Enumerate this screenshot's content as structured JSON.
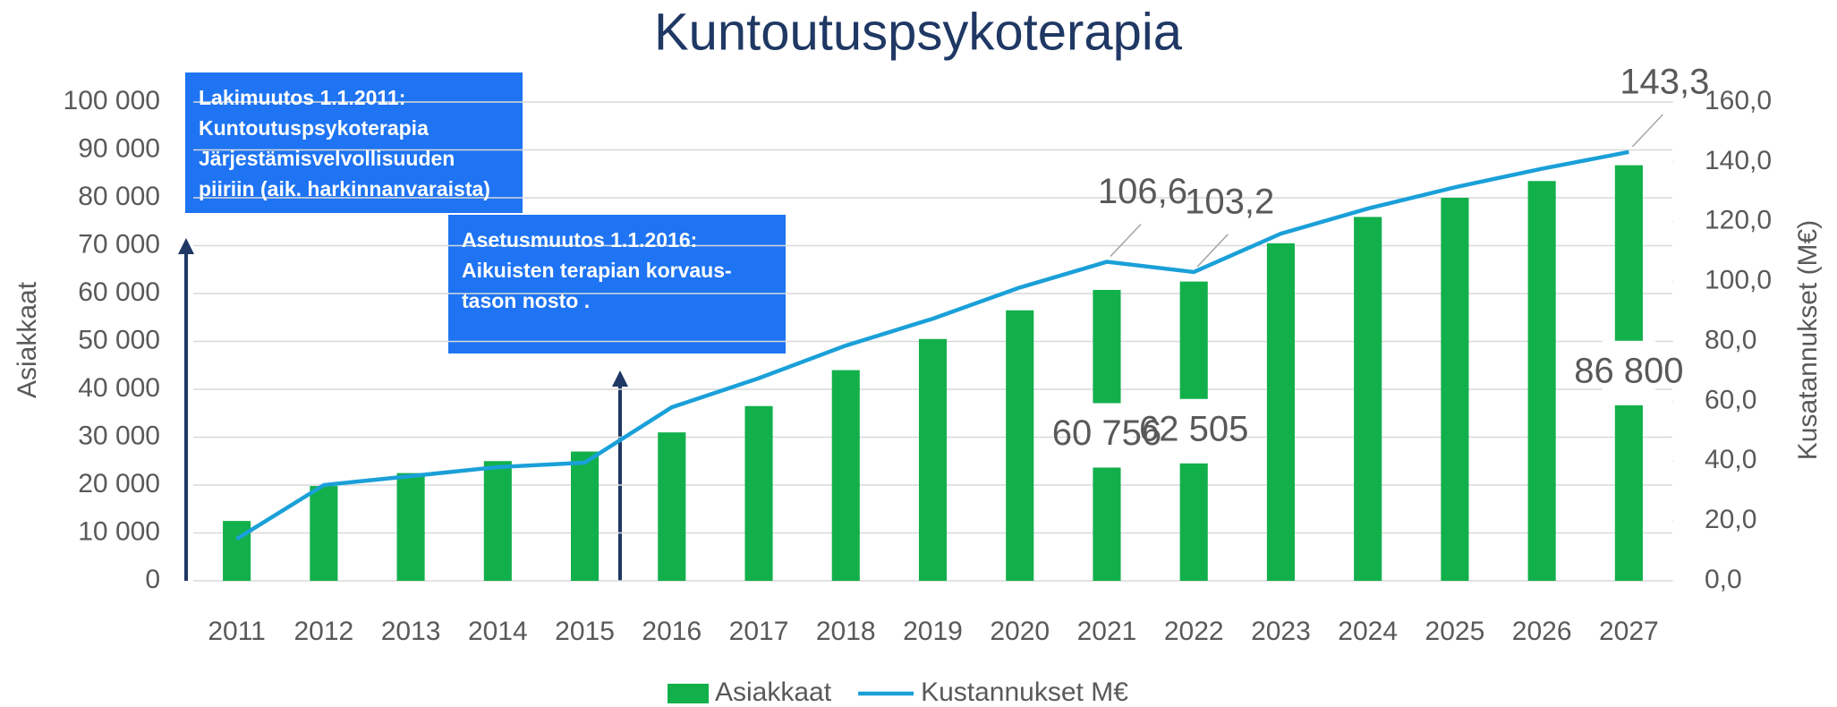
{
  "chart_data": {
    "type": "bar_line",
    "title": "Kuntoutuspsykoterapia",
    "y_label": "Asiakkaat",
    "y2_label": "Kusatannukset (M€)",
    "categories": [
      "2011",
      "2012",
      "2013",
      "2014",
      "2015",
      "2016",
      "2017",
      "2018",
      "2019",
      "2020",
      "2021",
      "2022",
      "2023",
      "2024",
      "2025",
      "2026",
      "2027"
    ],
    "series": [
      {
        "name": "Asiakkaat",
        "type": "bar",
        "color": "#12b04b",
        "values": [
          12500,
          19800,
          22500,
          25000,
          27000,
          31000,
          36500,
          44000,
          50500,
          56500,
          60756,
          62505,
          70500,
          76000,
          80000,
          83500,
          86800
        ],
        "value_labels": [
          null,
          null,
          null,
          null,
          null,
          null,
          null,
          null,
          null,
          null,
          "60 756",
          "62 505",
          null,
          null,
          null,
          null,
          "86 800"
        ]
      },
      {
        "name": "Kustannukset M€",
        "type": "line",
        "axis": "y2",
        "color": "#1aa0d8",
        "values": [
          14,
          32,
          35,
          38,
          39.5,
          58,
          67.7,
          78.6,
          87.6,
          98,
          106.6,
          103.2,
          116,
          124.4,
          131.5,
          137.7,
          143.3
        ],
        "value_labels": [
          null,
          null,
          null,
          null,
          null,
          null,
          null,
          null,
          null,
          null,
          "106,6",
          "103,2",
          null,
          null,
          null,
          null,
          "143,3"
        ]
      }
    ],
    "ylim": [
      0,
      100000
    ],
    "yticks": [
      {
        "value": 0,
        "label": "0"
      },
      {
        "value": 10000,
        "label": "10 000"
      },
      {
        "value": 20000,
        "label": "20 000"
      },
      {
        "value": 30000,
        "label": "30 000"
      },
      {
        "value": 40000,
        "label": "40 000"
      },
      {
        "value": 50000,
        "label": "50 000"
      },
      {
        "value": 60000,
        "label": "60 000"
      },
      {
        "value": 70000,
        "label": "70 000"
      },
      {
        "value": 80000,
        "label": "80 000"
      },
      {
        "value": 90000,
        "label": "90 000"
      },
      {
        "value": 100000,
        "label": "100 000"
      }
    ],
    "y2lim": [
      0,
      160
    ],
    "y2ticks": [
      {
        "value": 0,
        "label": "0,0"
      },
      {
        "value": 20,
        "label": "20,0"
      },
      {
        "value": 40,
        "label": "40,0"
      },
      {
        "value": 60,
        "label": "60,0"
      },
      {
        "value": 80,
        "label": "80,0"
      },
      {
        "value": 100,
        "label": "100,0"
      },
      {
        "value": 120,
        "label": "120,0"
      },
      {
        "value": 140,
        "label": "140,0"
      },
      {
        "value": 160,
        "label": "160,0"
      }
    ],
    "grid": true,
    "legend": "bottom",
    "annotations": [
      {
        "lines": [
          "Lakimuutos 1.1.2011:",
          "Kuntoutuspsykoterapia",
          "Järjestämisvelvollisuuden",
          "piiriin (aik. harkinnanvaraista)"
        ]
      },
      {
        "lines": [
          "Asetusmuutos 1.1.2016:",
          "Aikuisten terapian korvaus-",
          "tason nosto ."
        ]
      }
    ]
  }
}
